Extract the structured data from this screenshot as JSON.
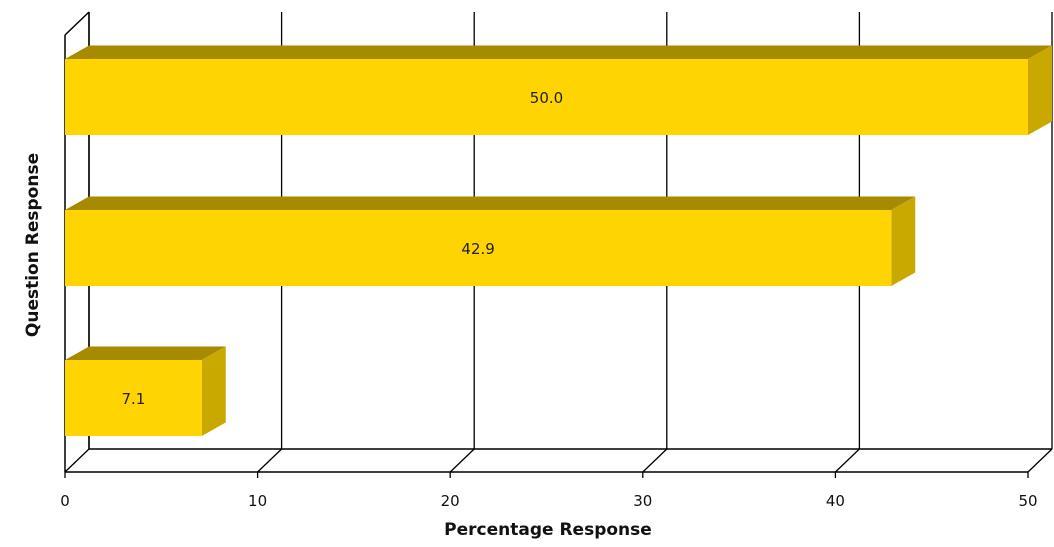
{
  "chart_data": {
    "type": "bar",
    "orientation": "horizontal",
    "three_d": true,
    "categories": [
      "",
      "",
      ""
    ],
    "values": [
      50.0,
      42.9,
      7.1
    ],
    "value_labels": [
      "50.0",
      "42.9",
      "7.1"
    ],
    "xlabel": "Percentage Response",
    "ylabel": "Question Response",
    "xlim": [
      0,
      50
    ],
    "x_ticks": [
      0,
      10,
      20,
      30,
      40,
      50
    ],
    "x_tick_labels": [
      "0",
      "10",
      "20",
      "30",
      "40",
      "50"
    ],
    "grid": true,
    "legend": "none"
  },
  "colors": {
    "bar_front": "#FFD400",
    "bar_top": "#A68A00",
    "bar_side": "#C9A800",
    "grid": "#000000"
  }
}
